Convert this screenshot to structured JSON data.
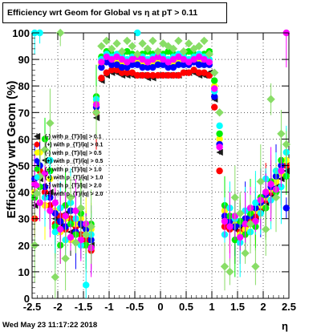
{
  "title": "Efficiency wrt Geom for Global vs   η at pT > 0.11",
  "timestamp": "Wed May 23 11:17:22 2018",
  "chart_data": {
    "type": "scatter",
    "title": "Efficiency wrt Geom for Global vs   η at pT > 0.11",
    "xlabel": "η",
    "ylabel": "Efficiency wrt Geom (%)",
    "xlim": [
      -2.5,
      2.5
    ],
    "ylim": [
      0,
      100
    ],
    "x_ticks": [
      "-2.5",
      "-2",
      "-1.5",
      "-1",
      "-0.5",
      "0",
      "0.5",
      "1",
      "1.5",
      "2",
      "2.5"
    ],
    "y_ticks": [
      "0",
      "10",
      "20",
      "30",
      "40",
      "50",
      "60",
      "70",
      "80",
      "90",
      "100"
    ],
    "grid": true,
    "legend_position": "left",
    "series": [
      {
        "name": "(-) with p_{T}/|q| > 0.1",
        "color": "#1a1a1a",
        "marker": "triangle-left",
        "x": [
          -2.45,
          -2.35,
          -2.25,
          -2.15,
          -2.05,
          -1.95,
          -1.85,
          -1.75,
          -1.65,
          -1.55,
          -1.45,
          -1.35,
          -1.25,
          -1.15,
          -1.05,
          -0.95,
          -0.85,
          -0.75,
          -0.65,
          -0.55,
          -0.45,
          -0.35,
          -0.25,
          -0.15,
          -0.05,
          0.05,
          0.15,
          0.25,
          0.35,
          0.45,
          0.55,
          0.65,
          0.75,
          0.85,
          0.95,
          1.05,
          1.15,
          1.25,
          1.35,
          1.45,
          1.55,
          1.65,
          1.75,
          1.85,
          1.95,
          2.05,
          2.15,
          2.25,
          2.35,
          2.45
        ],
        "y": [
          35,
          45,
          52,
          40,
          30,
          28,
          32,
          25,
          29,
          27,
          22,
          20,
          68,
          82,
          84,
          85,
          85,
          84,
          84,
          84,
          84,
          84,
          83,
          83,
          84,
          84,
          84,
          84,
          84,
          85,
          85,
          85,
          84,
          84,
          85,
          75,
          55,
          30,
          28,
          26,
          27,
          28,
          29,
          30,
          33,
          36,
          39,
          42,
          45,
          48
        ]
      },
      {
        "name": "(+) with p_{T}/|q| > 0.1",
        "color": "#ff0000",
        "marker": "circle",
        "x": [
          -2.45,
          -2.35,
          -2.25,
          -2.15,
          -2.05,
          -1.95,
          -1.85,
          -1.75,
          -1.65,
          -1.55,
          -1.45,
          -1.35,
          -1.25,
          -1.15,
          -1.05,
          -0.95,
          -0.85,
          -0.75,
          -0.65,
          -0.55,
          -0.45,
          -0.35,
          -0.25,
          -0.15,
          -0.05,
          0.05,
          0.15,
          0.25,
          0.35,
          0.45,
          0.55,
          0.65,
          0.75,
          0.85,
          0.95,
          1.05,
          1.15,
          1.25,
          1.35,
          1.45,
          1.55,
          1.65,
          1.75,
          1.85,
          1.95,
          2.05,
          2.15,
          2.25,
          2.35,
          2.45
        ],
        "y": [
          30,
          48,
          40,
          35,
          28,
          31,
          26,
          30,
          27,
          24,
          22,
          18,
          70,
          83,
          85,
          86,
          86,
          85,
          85,
          85,
          84,
          84,
          84,
          84,
          84,
          84,
          84,
          84,
          84,
          85,
          85,
          86,
          85,
          85,
          84,
          72,
          48,
          27,
          26,
          29,
          25,
          27,
          30,
          31,
          34,
          37,
          40,
          44,
          47,
          50
        ]
      },
      {
        "name": "(-) with p_{T}/|q| > 0.5",
        "color": "#ffff00",
        "marker": "circle",
        "x": [
          -2.45,
          -2.35,
          -2.25,
          -2.15,
          -2.05,
          -1.95,
          -1.85,
          -1.75,
          -1.65,
          -1.55,
          -1.45,
          -1.35,
          -1.25,
          -1.15,
          -1.05,
          -0.95,
          -0.85,
          -0.75,
          -0.65,
          -0.55,
          -0.45,
          -0.35,
          -0.25,
          -0.15,
          -0.05,
          0.05,
          0.15,
          0.25,
          0.35,
          0.45,
          0.55,
          0.65,
          0.75,
          0.85,
          0.95,
          1.05,
          1.15,
          1.25,
          1.35,
          1.45,
          1.55,
          1.65,
          1.75,
          1.85,
          1.95,
          2.05,
          2.15,
          2.25,
          2.35,
          2.45
        ],
        "y": [
          40,
          55,
          35,
          45,
          33,
          25,
          30,
          22,
          28,
          30,
          24,
          26,
          74,
          88,
          90,
          89,
          90,
          89,
          88,
          89,
          90,
          88,
          89,
          88,
          89,
          90,
          89,
          88,
          89,
          90,
          89,
          90,
          89,
          88,
          89,
          80,
          60,
          33,
          30,
          28,
          24,
          26,
          28,
          33,
          35,
          38,
          41,
          44,
          47,
          52
        ]
      },
      {
        "name": "(+) with p_{T}/|q| > 0.5",
        "color": "#0000ff",
        "marker": "circle",
        "x": [
          -2.45,
          -2.35,
          -2.25,
          -2.15,
          -2.05,
          -1.95,
          -1.85,
          -1.75,
          -1.65,
          -1.55,
          -1.45,
          -1.35,
          -1.25,
          -1.15,
          -1.05,
          -0.95,
          -0.85,
          -0.75,
          -0.65,
          -0.55,
          -0.45,
          -0.35,
          -0.25,
          -0.15,
          -0.05,
          0.05,
          0.15,
          0.25,
          0.35,
          0.45,
          0.55,
          0.65,
          0.75,
          0.85,
          0.95,
          1.05,
          1.15,
          1.25,
          1.35,
          1.45,
          1.55,
          1.65,
          1.75,
          1.85,
          1.95,
          2.05,
          2.15,
          2.25,
          2.35,
          2.45
        ],
        "y": [
          45,
          50,
          42,
          38,
          32,
          29,
          27,
          33,
          25,
          28,
          26,
          22,
          72,
          87,
          89,
          88,
          88,
          87,
          87,
          88,
          88,
          87,
          87,
          87,
          88,
          88,
          87,
          87,
          88,
          88,
          88,
          89,
          88,
          88,
          88,
          76,
          58,
          31,
          29,
          27,
          28,
          30,
          31,
          34,
          36,
          39,
          42,
          46,
          50,
          34
        ]
      },
      {
        "name": "(-) with p_{T}/|q| > 1.0",
        "color": "#00ee00",
        "marker": "circle",
        "x": [
          -2.45,
          -2.35,
          -2.25,
          -2.15,
          -2.05,
          -1.95,
          -1.85,
          -1.75,
          -1.65,
          -1.55,
          -1.45,
          -1.35,
          -1.25,
          -1.15,
          -1.05,
          -0.95,
          -0.85,
          -0.75,
          -0.65,
          -0.55,
          -0.45,
          -0.35,
          -0.25,
          -0.15,
          -0.05,
          0.05,
          0.15,
          0.25,
          0.35,
          0.45,
          0.55,
          0.65,
          0.75,
          0.85,
          0.95,
          1.05,
          1.15,
          1.25,
          1.35,
          1.45,
          1.55,
          1.65,
          1.75,
          1.85,
          1.95,
          2.05,
          2.15,
          2.25,
          2.35,
          2.45
        ],
        "y": [
          38,
          42,
          60,
          48,
          27,
          20,
          35,
          28,
          24,
          32,
          20,
          28,
          76,
          91,
          93,
          92,
          91,
          92,
          93,
          92,
          91,
          92,
          93,
          92,
          91,
          92,
          93,
          92,
          91,
          92,
          93,
          92,
          91,
          92,
          93,
          82,
          62,
          35,
          31,
          22,
          29,
          24,
          32,
          27,
          38,
          34,
          44,
          40,
          52,
          46
        ]
      },
      {
        "name": "(+) with p_{T}/|q| > 1.0",
        "color": "#00ffff",
        "marker": "circle",
        "x": [
          -2.45,
          -2.35,
          -2.25,
          -2.15,
          -2.05,
          -1.95,
          -1.85,
          -1.75,
          -1.65,
          -1.55,
          -1.45,
          -1.35,
          -1.25,
          -1.15,
          -1.05,
          -0.95,
          -0.85,
          -0.75,
          -0.65,
          -0.55,
          -0.45,
          -0.35,
          -0.25,
          -0.15,
          -0.05,
          0.05,
          0.15,
          0.25,
          0.35,
          0.45,
          0.55,
          0.65,
          0.75,
          0.85,
          0.95,
          1.05,
          1.15,
          1.25,
          1.35,
          1.45,
          1.55,
          1.65,
          1.75,
          1.85,
          1.95,
          2.05,
          2.15,
          2.25,
          2.35,
          2.45
        ],
        "y": [
          100,
          100,
          38,
          52,
          25,
          34,
          22,
          36,
          30,
          20,
          5,
          24,
          75,
          90,
          92,
          91,
          92,
          91,
          90,
          91,
          100,
          91,
          90,
          91,
          92,
          91,
          90,
          91,
          92,
          91,
          90,
          91,
          92,
          91,
          90,
          78,
          65,
          24,
          34,
          30,
          21,
          33,
          25,
          36,
          32,
          45,
          37,
          48,
          42,
          55
        ]
      },
      {
        "name": "(-) with p_{T}/|q| > 2.0",
        "color": "#ff00ff",
        "marker": "circle",
        "x": [
          -2.45,
          -2.35,
          -2.25,
          -2.15,
          -2.05,
          -1.95,
          -1.85,
          -1.75,
          -1.65,
          -1.55,
          -1.45,
          -1.35,
          -1.25,
          -1.15,
          -1.05,
          -0.95,
          -0.85,
          -0.75,
          -0.65,
          -0.55,
          -0.45,
          -0.35,
          -0.25,
          -0.15,
          -0.05,
          0.05,
          0.15,
          0.25,
          0.35,
          0.45,
          0.55,
          0.65,
          0.75,
          0.85,
          0.95,
          1.05,
          1.15,
          1.25,
          1.35,
          1.45,
          1.55,
          1.65,
          1.75,
          1.85,
          1.95,
          2.05,
          2.15,
          2.25,
          2.35,
          2.45
        ],
        "y": [
          43,
          36,
          47,
          33,
          36,
          26,
          31,
          23,
          33,
          22,
          28,
          19,
          73,
          89,
          91,
          90,
          91,
          90,
          89,
          90,
          91,
          90,
          89,
          90,
          91,
          90,
          89,
          90,
          91,
          90,
          89,
          90,
          91,
          90,
          89,
          79,
          57,
          29,
          27,
          31,
          23,
          28,
          34,
          29,
          37,
          40,
          43,
          41,
          48,
          100
        ]
      },
      {
        "name": "(+) with p_{T}/|q| > 2.0",
        "color": "#88dd66",
        "marker": "diamond",
        "x": [
          -2.45,
          -2.35,
          -2.25,
          -2.15,
          -2.05,
          -1.95,
          -1.85,
          -1.75,
          -1.65,
          -1.55,
          -1.45,
          -1.35,
          -1.25,
          -1.15,
          -1.05,
          -0.95,
          -0.85,
          -0.75,
          -0.65,
          -0.55,
          -0.45,
          -0.35,
          -0.25,
          -0.15,
          -0.05,
          0.05,
          0.15,
          0.25,
          0.35,
          0.45,
          0.55,
          0.65,
          0.75,
          0.85,
          0.95,
          1.05,
          1.15,
          1.25,
          1.35,
          1.45,
          1.55,
          1.65,
          1.75,
          1.85,
          1.95,
          2.05,
          2.15,
          2.25,
          2.35,
          2.45
        ],
        "y": [
          20,
          46,
          56,
          66,
          8,
          100,
          15,
          38,
          21,
          34,
          24,
          27,
          70,
          95,
          97,
          94,
          96,
          93,
          97,
          95,
          92,
          96,
          94,
          97,
          93,
          96,
          95,
          94,
          97,
          93,
          96,
          94,
          95,
          97,
          92,
          85,
          70,
          12,
          10,
          38,
          32,
          17,
          28,
          12,
          44,
          26,
          75,
          38,
          62,
          58
        ]
      }
    ]
  }
}
